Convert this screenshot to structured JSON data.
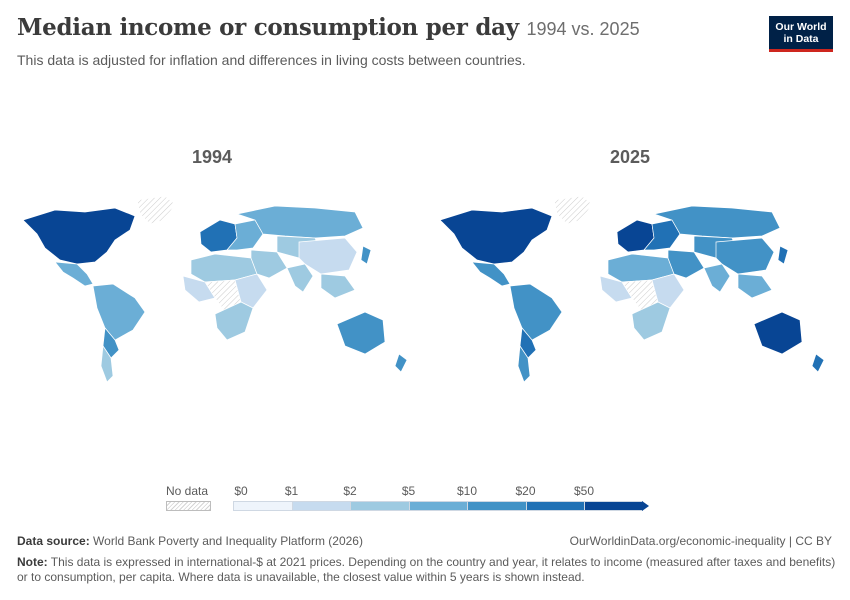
{
  "header": {
    "title": "Median income or consumption per day",
    "title_years": "1994 vs. 2025",
    "subtitle": "This data is adjusted for inflation and differences in living costs between countries.",
    "logo_line1": "Our World",
    "logo_line2": "in Data"
  },
  "maps": [
    {
      "year": "1994",
      "regions": {
        "north_america": 6,
        "greenland": 0,
        "central_america": 3,
        "south_america": 3,
        "south_america_south": 4,
        "patagonia": 2,
        "europe_west": 5,
        "europe_east": 3,
        "russia": 3,
        "north_africa": 2,
        "west_africa": 1,
        "central_africa": 0,
        "east_africa": 1,
        "southern_africa": 2,
        "middle_east": 2,
        "central_asia": 2,
        "china": 1,
        "india": 2,
        "southeast_asia": 2,
        "japan": 4,
        "australia": 4,
        "nz": 4
      }
    },
    {
      "year": "2025",
      "regions": {
        "north_america": 6,
        "greenland": 0,
        "central_america": 4,
        "south_america": 4,
        "south_america_south": 5,
        "patagonia": 4,
        "europe_west": 6,
        "europe_east": 5,
        "russia": 4,
        "north_africa": 3,
        "west_africa": 1,
        "central_africa": 0,
        "east_africa": 1,
        "southern_africa": 2,
        "middle_east": 4,
        "central_asia": 4,
        "china": 4,
        "india": 3,
        "southeast_asia": 3,
        "japan": 5,
        "australia": 6,
        "nz": 5
      }
    }
  ],
  "legend": {
    "no_data_label": "No data",
    "ticks": [
      "$0",
      "$1",
      "$2",
      "$5",
      "$10",
      "$20",
      "$50"
    ],
    "colors": [
      "#eef4fb",
      "#c6dbef",
      "#9ecae1",
      "#6baed6",
      "#4292c6",
      "#2171b5",
      "#084594"
    ],
    "no_data_color": "#e0e0e0"
  },
  "footer": {
    "source_label": "Data source:",
    "source_text": "World Bank Poverty and Inequality Platform (2026)",
    "url": "OurWorldinData.org/economic-inequality | CC BY",
    "note_label": "Note:",
    "note_text": "This data is expressed in international-$ at 2021 prices. Depending on the country and year, it relates to income (measured after taxes and benefits) or to consumption, per capita. Where data is unavailable, the closest value within 5 years is shown instead."
  }
}
